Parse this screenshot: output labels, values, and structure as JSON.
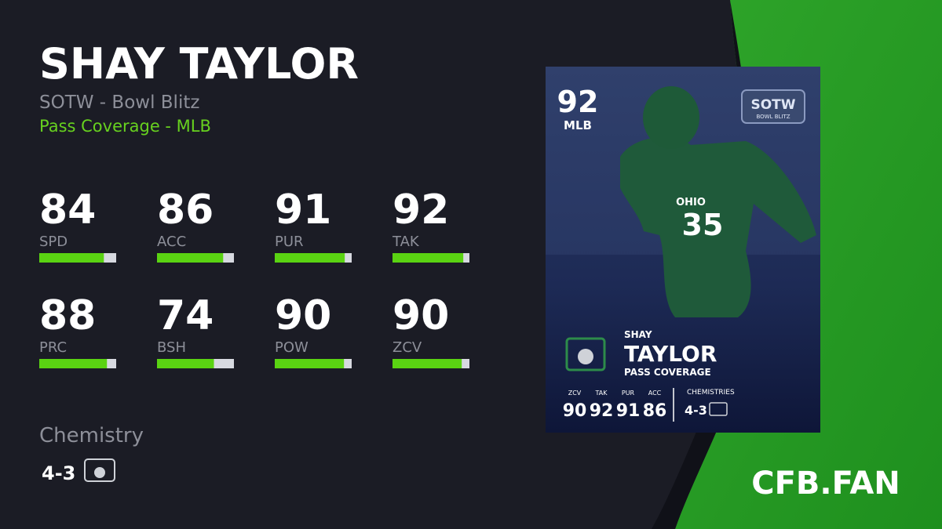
{
  "header": {
    "name": "SHAY TAYLOR",
    "program": "SOTW - Bowl Blitz",
    "position": "Pass Coverage - MLB"
  },
  "stats": [
    {
      "label": "SPD",
      "value": 84
    },
    {
      "label": "ACC",
      "value": 86
    },
    {
      "label": "PUR",
      "value": 91
    },
    {
      "label": "TAK",
      "value": 92
    },
    {
      "label": "PRC",
      "value": 88
    },
    {
      "label": "BSH",
      "value": 74
    },
    {
      "label": "POW",
      "value": 90
    },
    {
      "label": "ZCV",
      "value": 90
    }
  ],
  "chemistry": {
    "title": "Chemistry",
    "value": "4-3"
  },
  "card": {
    "overall": 92,
    "position": "MLB",
    "badge_title": "SOTW",
    "badge_subtitle": "BOWL BLITZ",
    "jersey_number": "35",
    "jersey_text": "OHIO",
    "first_name": "SHAY",
    "last_name": "TAYLOR",
    "archetype": "PASS COVERAGE",
    "stats": [
      {
        "label": "ZCV",
        "value": 90
      },
      {
        "label": "TAK",
        "value": 92
      },
      {
        "label": "PUR",
        "value": 91
      },
      {
        "label": "ACC",
        "value": 86
      }
    ],
    "chemistries_title": "CHEMISTRIES",
    "chemistry": "4-3"
  },
  "brand": "CFB.FAN"
}
